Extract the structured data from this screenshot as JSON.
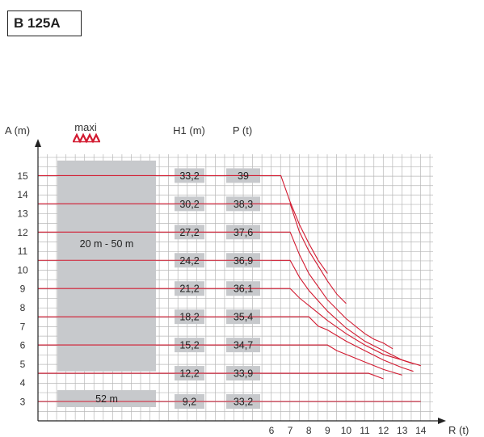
{
  "model": "B 125A",
  "chart_data": {
    "type": "line",
    "y_axis_label": "A (m)",
    "x_axis_label": "R (t)",
    "maxi_label": "maxi",
    "column_headers": {
      "h1": "H1 (m)",
      "p": "P (t)"
    },
    "y_ticks": [
      3,
      4,
      5,
      6,
      7,
      8,
      9,
      10,
      11,
      12,
      13,
      14,
      15
    ],
    "x_ticks": [
      6,
      7,
      8,
      9,
      10,
      11,
      12,
      13,
      14
    ],
    "ylim": [
      2,
      16
    ],
    "xlim": [
      6,
      14
    ],
    "grid": true,
    "range_blocks": [
      {
        "label": "20 m - 50 m",
        "y_from": 4.6,
        "y_to": 15.8
      },
      {
        "label": "52 m",
        "y_from": 2.7,
        "y_to": 3.6
      }
    ],
    "rows": [
      {
        "a": 15.0,
        "h1": "33,2",
        "p": "39"
      },
      {
        "a": 13.5,
        "h1": "30,2",
        "p": "38,3"
      },
      {
        "a": 12.0,
        "h1": "27,2",
        "p": "37,6"
      },
      {
        "a": 10.5,
        "h1": "24,2",
        "p": "36,9"
      },
      {
        "a": 9.0,
        "h1": "21,2",
        "p": "36,1"
      },
      {
        "a": 7.5,
        "h1": "18,2",
        "p": "35,4"
      },
      {
        "a": 6.0,
        "h1": "15,2",
        "p": "34,7"
      },
      {
        "a": 4.5,
        "h1": "12,2",
        "p": "33,9"
      },
      {
        "a": 3.0,
        "h1": "9,2",
        "p": "33,2"
      }
    ],
    "series": [
      {
        "points": [
          [
            6,
            15.0
          ],
          [
            6.5,
            15.0
          ],
          [
            7.0,
            13.6
          ],
          [
            7.5,
            12.4
          ],
          [
            8.0,
            11.4
          ],
          [
            8.5,
            10.5
          ],
          [
            9.0,
            9.8
          ]
        ]
      },
      {
        "points": [
          [
            6,
            13.5
          ],
          [
            7.0,
            13.5
          ],
          [
            7.5,
            12.0
          ],
          [
            8.0,
            11.0
          ],
          [
            8.5,
            10.2
          ],
          [
            9.0,
            9.4
          ],
          [
            9.5,
            8.7
          ],
          [
            10.0,
            8.2
          ]
        ]
      },
      {
        "points": [
          [
            6,
            12.0
          ],
          [
            7.0,
            12.0
          ],
          [
            7.5,
            10.8
          ],
          [
            8.0,
            9.8
          ],
          [
            9.0,
            8.4
          ],
          [
            10.0,
            7.4
          ],
          [
            11.0,
            6.6
          ],
          [
            11.5,
            6.3
          ],
          [
            12.0,
            6.1
          ],
          [
            12.5,
            5.8
          ]
        ]
      },
      {
        "points": [
          [
            6,
            10.5
          ],
          [
            7.0,
            10.5
          ],
          [
            7.5,
            9.6
          ],
          [
            8.0,
            8.9
          ],
          [
            9.0,
            7.8
          ],
          [
            10.0,
            6.9
          ],
          [
            11.0,
            6.2
          ],
          [
            12.0,
            5.7
          ],
          [
            13.0,
            5.2
          ],
          [
            13.6,
            5.0
          ]
        ]
      },
      {
        "points": [
          [
            6,
            9.0
          ],
          [
            7.0,
            9.0
          ],
          [
            7.5,
            8.5
          ],
          [
            8.0,
            8.1
          ],
          [
            9.0,
            7.3
          ],
          [
            10.0,
            6.6
          ],
          [
            11.0,
            6.0
          ],
          [
            12.0,
            5.5
          ],
          [
            13.0,
            5.2
          ],
          [
            14.0,
            4.9
          ]
        ]
      },
      {
        "points": [
          [
            6,
            7.5
          ],
          [
            8.0,
            7.5
          ],
          [
            8.5,
            7.0
          ],
          [
            9.0,
            6.8
          ],
          [
            10.0,
            6.2
          ],
          [
            11.0,
            5.7
          ],
          [
            12.0,
            5.2
          ],
          [
            13.0,
            4.8
          ],
          [
            13.6,
            4.6
          ]
        ]
      },
      {
        "points": [
          [
            6,
            6.0
          ],
          [
            9.0,
            6.0
          ],
          [
            9.5,
            5.7
          ],
          [
            10.0,
            5.5
          ],
          [
            11.0,
            5.1
          ],
          [
            12.0,
            4.7
          ],
          [
            13.0,
            4.4
          ]
        ]
      },
      {
        "points": [
          [
            6,
            4.5
          ],
          [
            11.2,
            4.5
          ],
          [
            12.0,
            4.2
          ]
        ]
      },
      {
        "points": [
          [
            6,
            3.0
          ],
          [
            14.0,
            3.0
          ]
        ]
      }
    ]
  },
  "colors": {
    "series": "#d21a30",
    "grid": "#b7b7b7",
    "block": "#c7c9cc",
    "text": "#333333"
  }
}
